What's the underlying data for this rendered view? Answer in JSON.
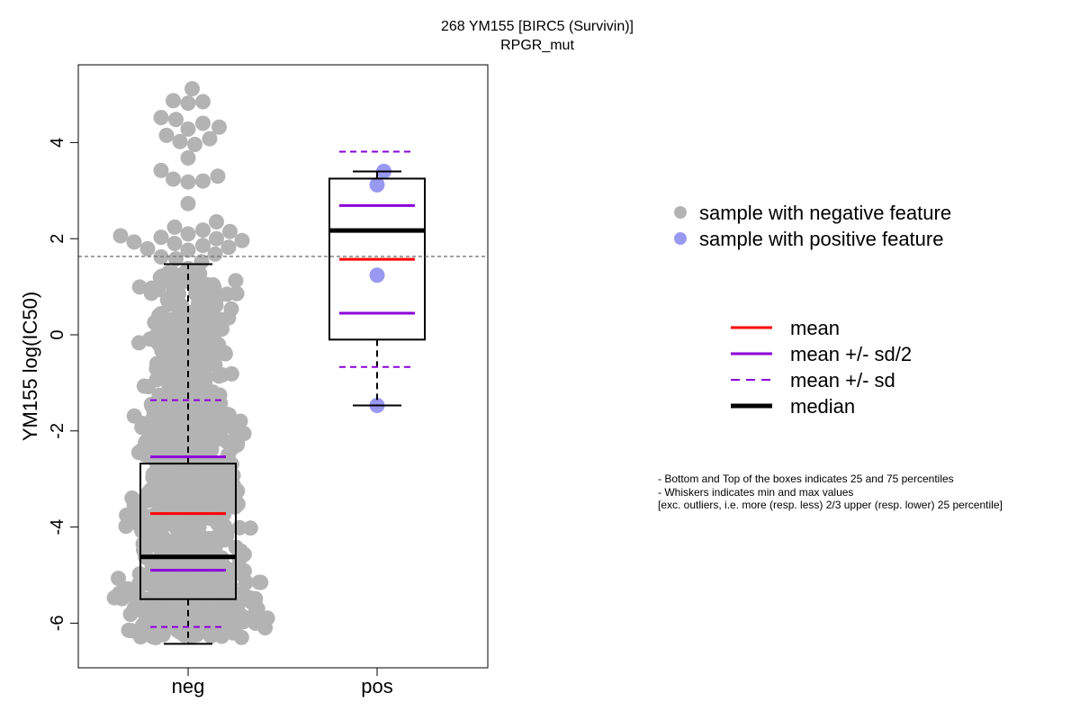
{
  "chart_data": {
    "type": "box+beeswarm",
    "title": "268 YM155 [BIRC5 (Survivin)]",
    "subtitle": "RPGR_mut",
    "ylabel": "YM155 log(IC50)",
    "xlabel": "",
    "ylim": [
      -6.8,
      5.5
    ],
    "yticks": [
      -6,
      -4,
      -2,
      0,
      2,
      4
    ],
    "categories": [
      "neg",
      "pos"
    ],
    "reference_line": 1.63,
    "groups": [
      {
        "name": "neg",
        "color": "#b3b3b3",
        "box": {
          "q1": -5.5,
          "median": -4.62,
          "q3": -2.68,
          "whisker_low": -6.43,
          "whisker_high": 1.47
        },
        "mean": -3.72,
        "mean_minus_half_sd": -4.9,
        "mean_plus_half_sd": -2.54,
        "mean_minus_sd": -6.08,
        "mean_plus_sd": -1.36,
        "points": [
          5.12,
          4.87,
          4.85,
          4.82,
          4.52,
          4.48,
          4.4,
          4.32,
          4.28,
          4.15,
          4.08,
          4.02,
          3.96,
          3.68,
          3.42,
          3.3,
          3.24,
          3.2,
          3.18,
          2.73,
          2.35,
          2.24,
          2.18,
          2.15,
          2.1,
          2.06,
          2.03,
          2.0,
          1.96,
          1.93,
          1.9,
          1.86,
          1.82,
          1.79,
          1.76,
          1.68,
          1.62,
          1.58,
          1.52,
          1.38
        ]
      },
      {
        "name": "pos",
        "color": "#9999f2",
        "box": {
          "q1": -0.1,
          "median": 2.17,
          "q3": 3.25,
          "whisker_low": -1.47,
          "whisker_high": 3.4
        },
        "mean": 1.57,
        "mean_minus_half_sd": 0.45,
        "mean_plus_half_sd": 2.69,
        "mean_minus_sd": -0.67,
        "mean_plus_sd": 3.81,
        "points": [
          3.4,
          3.12,
          1.24,
          -1.47
        ]
      }
    ],
    "legend_points": [
      {
        "label": "sample with negative feature",
        "color": "#b3b3b3"
      },
      {
        "label": "sample with positive feature",
        "color": "#9999f2"
      }
    ],
    "legend_lines": [
      {
        "label": "mean",
        "color": "#ff0000",
        "style": "solid",
        "width": 3
      },
      {
        "label": "mean +/- sd/2",
        "color": "#8b00d9",
        "style": "solid",
        "width": 3
      },
      {
        "label": "mean +/- sd",
        "color": "#8b00d9",
        "style": "dashed",
        "width": 2
      },
      {
        "label": "median",
        "color": "#000000",
        "style": "solid",
        "width": 5
      }
    ],
    "notes": [
      "- Bottom and Top of the boxes indicates 25 and 75 percentiles",
      "- Whiskers indicates min and max values",
      "[exc. outliers, i.e. more (resp. less) 2/3 upper (resp. lower) 25 percentile]"
    ]
  }
}
